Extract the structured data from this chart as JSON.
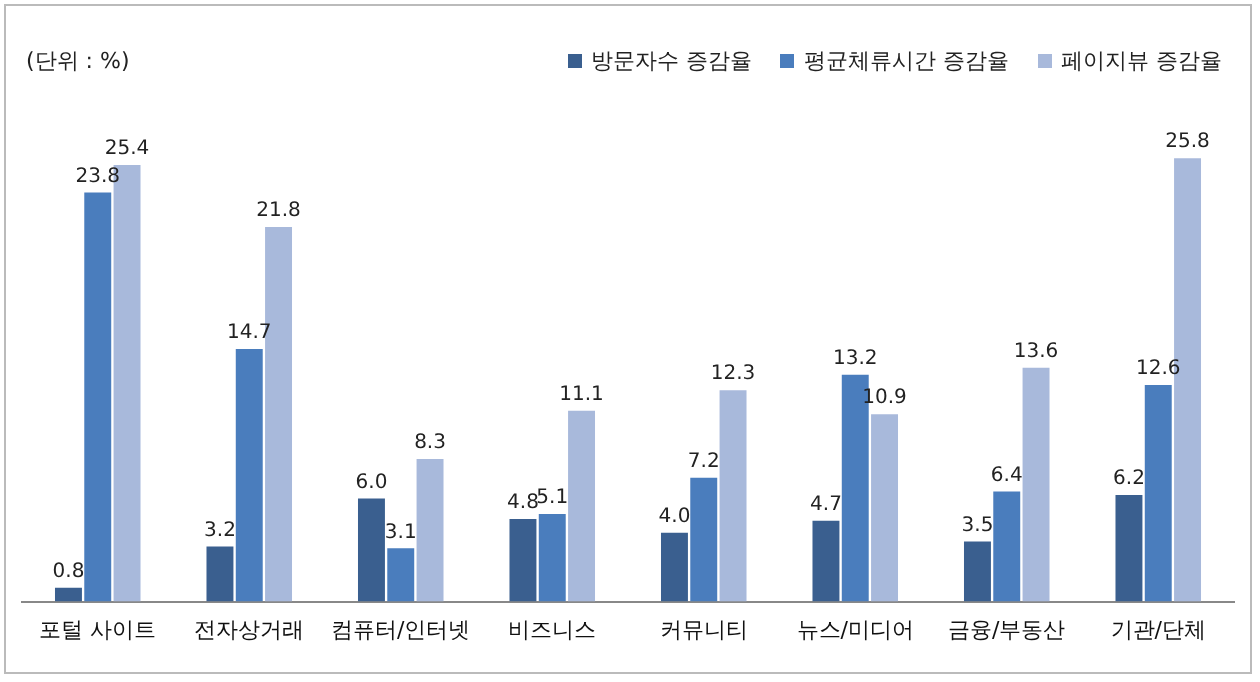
{
  "chart_data": {
    "type": "bar",
    "annotations": [
      "(단위 : %)"
    ],
    "categories": [
      "포털 사이트",
      "전자상거래",
      "컴퓨터/인터넷",
      "비즈니스",
      "커뮤니티",
      "뉴스/미디어",
      "금융/부동산",
      "기관/단체"
    ],
    "series": [
      {
        "name": "방문자수 증감율",
        "color": "#3a5f8f",
        "values": [
          0.8,
          3.2,
          6,
          4.8,
          4,
          4.7,
          3.5,
          6.2
        ],
        "value_labels": [
          "0.8",
          "3.2",
          "6.0",
          "4.8",
          "4.0",
          "4.7",
          "3.5",
          "6.2"
        ]
      },
      {
        "name": "평균체류시간 증감율",
        "color": "#4a7dbd",
        "values": [
          23.8,
          14.7,
          3.1,
          5.1,
          7.2,
          13.2,
          6.4,
          12.6
        ],
        "value_labels": [
          "23.8",
          "14.7",
          "3.1",
          "5.1",
          "7.2",
          "13.2",
          "6.4",
          "12.6"
        ]
      },
      {
        "name": "페이지뷰 증감율",
        "color": "#a8b9db",
        "values": [
          25.4,
          21.8,
          8.3,
          11.1,
          12.3,
          10.9,
          13.6,
          25.8
        ],
        "value_labels": [
          "25.4",
          "21.8",
          "8.3",
          "11.1",
          "12.3",
          "10.9",
          "13.6",
          "25.8"
        ]
      }
    ],
    "legend": "top right",
    "grid": false
  }
}
